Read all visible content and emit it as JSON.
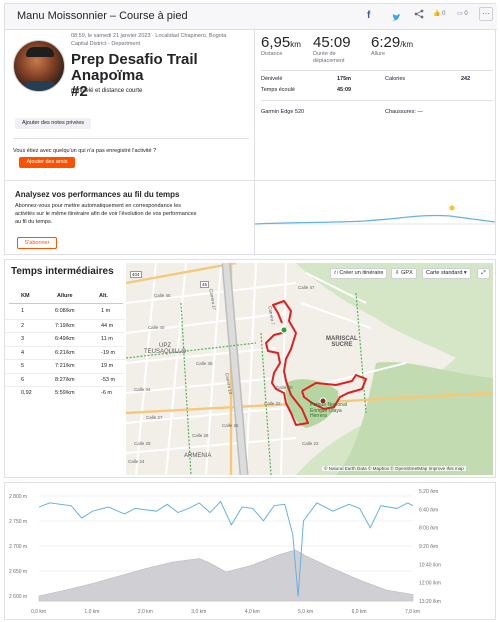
{
  "header": {
    "title": "Manu Moissonnier – Course à pied",
    "share_buttons": [
      {
        "icon": "facebook-icon",
        "glyph": "f"
      },
      {
        "icon": "twitter-icon",
        "glyph": "🐦"
      },
      {
        "icon": "share-icon",
        "glyph": "⤴"
      },
      {
        "icon": "more-icon",
        "glyph": "⋯"
      }
    ],
    "kudos_count": "0",
    "comment_count": "0"
  },
  "activity": {
    "meta": "08:59, le samedi 21 janvier 2023 · Localidad Chapinero, Bogota Capital District - Department",
    "meta_line1": "08:59, le samedi 21 janvier 2023 · Localidad Chapinero, Bogota",
    "meta_line2": "Capital District - Department",
    "title_line1": "Prep Desafio Trail Anapoïma",
    "title_line2": "#2",
    "description": "dénivelé et distance courte",
    "private_notes_button": "Ajouter des notes privées",
    "friend_question": "Vous étiez avec quelqu'un qui n'a pas enregistré l'activité ?",
    "add_friends_button": "Ajouter des amis"
  },
  "stats": {
    "distance_value": "6,95",
    "distance_unit": "km",
    "distance_label": "Distance",
    "moving_time_value": "45:09",
    "moving_time_label_1": "Durée de",
    "moving_time_label_2": "déplacement",
    "pace_value": "6:29",
    "pace_unit": "/km",
    "pace_label": "Allure",
    "elevation_label": "Dénivelé",
    "elevation_value": "175m",
    "calories_label": "Calories",
    "calories_value": "242",
    "elapsed_label": "Temps écoulé",
    "elapsed_value": "45:09",
    "device": "Garmin Edge 520",
    "shoes_label": "Chaussures: —"
  },
  "analysis": {
    "title": "Analysez vos performances au fil du temps",
    "text_1": "Abonnez-vous pour mettre automatiquement en correspondance les",
    "text_2": "activités sur le même itinéraire afin de voir l'évolution de vos performances",
    "text_3": "au fil du temps.",
    "subscribe_button": "S'abonner",
    "accent_color": "#fc5200"
  },
  "splits": {
    "title": "Temps intermédiaires",
    "headers": [
      "KM",
      "Allure",
      "Alt."
    ],
    "rows": [
      {
        "km": "1",
        "pace": "6:08/km",
        "alt": "1 m"
      },
      {
        "km": "2",
        "pace": "7:19/km",
        "alt": "44 m"
      },
      {
        "km": "3",
        "pace": "6:49/km",
        "alt": "11 m"
      },
      {
        "km": "4",
        "pace": "6:21/km",
        "alt": "-19 m"
      },
      {
        "km": "5",
        "pace": "7:21/km",
        "alt": "19 m"
      },
      {
        "km": "6",
        "pace": "8:27/km",
        "alt": "-53 m"
      },
      {
        "km": "0,92",
        "pace": "5:59/km",
        "alt": "-6 m"
      }
    ]
  },
  "map": {
    "create_route_button": "Créer un itinéraire",
    "gpx_button": "GPX",
    "map_type_select": "Carte standard",
    "labels": {
      "mariscal_1": "MARISCAL",
      "mariscal_2": "SUCRE",
      "teusaquillo_1": "UPZ",
      "teusaquillo_2": "TEUSAQUILLO",
      "armenia": "ARMENIA",
      "park_1": "Parque Nacional",
      "park_2": "Enrique Olaya",
      "park_3": "Herrera",
      "calle_45": "Calle 45",
      "calle_40": "Calle 40",
      "calle_36": "Calle 36",
      "calle_34": "Calle 34",
      "calle_32": "Calle 32",
      "calle_25": "Calle 25",
      "calle_27": "Calle 27",
      "calle_26": "Calle 26",
      "calle_28": "Calle 28",
      "calle_22": "Calle 22",
      "calle_24": "Calle 24",
      "calle_30": "Calle 30",
      "calle_47": "Calle 47",
      "carrera_17": "Carrera 17",
      "carrera_7": "Carrera 7",
      "carrera_13": "Carrera 13",
      "route_404": "404",
      "route_45": "45"
    },
    "attribution": "© Natural Earth Data © Mapbox © OpenStreetMap Improve this map"
  },
  "chart_data": {
    "type": "area",
    "y_left_ticks": [
      "2 800 m",
      "2 750 m",
      "2 700 m",
      "2 650 m",
      "2 600 m"
    ],
    "y_right_ticks": [
      "5:20 /km",
      "6:40 /km",
      "8:00 /km",
      "9:20 /km",
      "10:40 /km",
      "12:00 /km",
      "13:20 /km"
    ],
    "x_ticks": [
      "0,0 km",
      "1,0 km",
      "2,0 km",
      "3,0 km",
      "4,0 km",
      "5,0 km",
      "6,0 km",
      "7,0 km"
    ],
    "series": [
      {
        "values": [
          [
            0,
            2600
          ],
          [
            0.5,
            2612
          ],
          [
            1.0,
            2625
          ],
          [
            1.5,
            2640
          ],
          [
            2.0,
            2655
          ],
          [
            2.5,
            2668
          ],
          [
            3.0,
            2675
          ],
          [
            3.2,
            2666
          ],
          [
            3.5,
            2648
          ],
          [
            4.0,
            2662
          ],
          [
            4.5,
            2683
          ],
          [
            4.8,
            2692
          ],
          [
            5.0,
            2680
          ],
          [
            5.5,
            2655
          ],
          [
            6.0,
            2632
          ],
          [
            6.5,
            2612
          ],
          [
            7.0,
            2603
          ]
        ]
      },
      {
        "values": [
          [
            0,
            6.5
          ],
          [
            0.2,
            6.2
          ],
          [
            0.6,
            6.4
          ],
          [
            0.8,
            7.3
          ],
          [
            1.0,
            6.8
          ],
          [
            1.3,
            6.5
          ],
          [
            1.6,
            7.0
          ],
          [
            1.8,
            6.6
          ],
          [
            2.2,
            6.8
          ],
          [
            2.4,
            6.3
          ],
          [
            2.6,
            6.9
          ],
          [
            2.8,
            6.6
          ],
          [
            3.0,
            6.2
          ],
          [
            3.2,
            6.9
          ],
          [
            3.4,
            6.1
          ],
          [
            3.6,
            7.8
          ],
          [
            3.8,
            6.5
          ],
          [
            4.0,
            6.6
          ],
          [
            4.2,
            7.5
          ],
          [
            4.4,
            6.4
          ],
          [
            4.6,
            6.3
          ],
          [
            4.75,
            8.5
          ],
          [
            4.85,
            13.0
          ],
          [
            4.95,
            7.5
          ],
          [
            5.2,
            6.2
          ],
          [
            5.5,
            6.8
          ],
          [
            5.8,
            6.3
          ],
          [
            6.0,
            6.6
          ],
          [
            6.2,
            8.0
          ],
          [
            6.4,
            6.4
          ],
          [
            6.7,
            6.6
          ],
          [
            6.9,
            6.2
          ],
          [
            7.0,
            6.4
          ]
        ]
      }
    ],
    "ylim": [
      2590,
      2810
    ],
    "xlim": [
      0,
      7
    ],
    "colors": {
      "elevation_fill": "#cfcfd4",
      "pace_line": "#67b2e3"
    }
  }
}
